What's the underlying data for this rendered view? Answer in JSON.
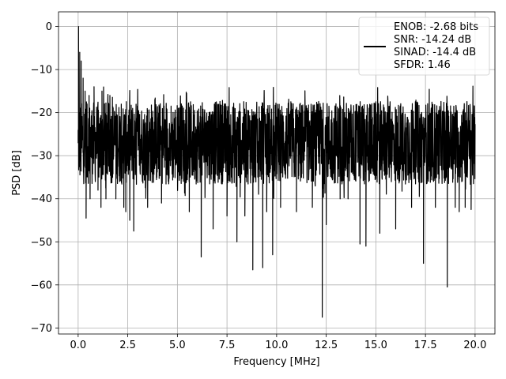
{
  "chart_data": {
    "type": "line",
    "title": "",
    "xlabel": "Frequency [MHz]",
    "ylabel": "PSD [dB]",
    "xlim": [
      -0.99,
      21.0
    ],
    "ylim": [
      -71.4,
      3.4
    ],
    "grid": true,
    "legend_position": "top-right",
    "line_color": "#000000",
    "x_ticks": [
      0.0,
      2.5,
      5.0,
      7.5,
      10.0,
      12.5,
      15.0,
      17.5,
      20.0
    ],
    "x_tick_labels": [
      "0.0",
      "2.5",
      "5.0",
      "7.5",
      "10.0",
      "12.5",
      "15.0",
      "17.5",
      "20.0"
    ],
    "y_ticks": [
      0,
      -10,
      -20,
      -30,
      -40,
      -50,
      -60,
      -70
    ],
    "y_tick_labels": [
      "0",
      "−10",
      "−20",
      "−30",
      "−40",
      "−50",
      "−60",
      "−70"
    ],
    "legend_entries": [
      "ENOB: -2.68 bits",
      "SNR: -14.24 dB",
      "SINAD: -14.4 dB",
      "SFDR: 1.46"
    ],
    "series": [
      {
        "name": "ENOB: -2.68 bits",
        "x_start": 0.0,
        "x_end": 20.0,
        "band_center": -27,
        "band_halfwidth": 6,
        "points": [
          [
            0.0,
            -27
          ],
          [
            0.02,
            0.0
          ],
          [
            0.05,
            -20
          ],
          [
            0.08,
            -6
          ],
          [
            0.12,
            -26
          ],
          [
            0.15,
            -8
          ],
          [
            0.2,
            -24
          ],
          [
            0.25,
            -12
          ],
          [
            0.3,
            -30
          ],
          [
            0.35,
            -15
          ],
          [
            0.4,
            -44.5
          ],
          [
            0.45,
            -18
          ],
          [
            0.5,
            -33
          ],
          [
            0.55,
            -16
          ],
          [
            0.6,
            -40
          ],
          [
            0.8,
            -14
          ],
          [
            1.0,
            -38
          ],
          [
            1.2,
            -15
          ],
          [
            1.15,
            -42
          ],
          [
            1.4,
            -40
          ],
          [
            1.6,
            -16
          ],
          [
            1.9,
            -40
          ],
          [
            2.3,
            -42
          ],
          [
            2.4,
            -43
          ],
          [
            2.8,
            -47.5
          ],
          [
            2.6,
            -45
          ],
          [
            3.5,
            -42
          ],
          [
            4.2,
            -41
          ],
          [
            5.6,
            -43
          ],
          [
            6.2,
            -53.5
          ],
          [
            6.8,
            -47
          ],
          [
            7.5,
            -44
          ],
          [
            8.0,
            -50
          ],
          [
            8.4,
            -44
          ],
          [
            8.8,
            -56.5
          ],
          [
            9.3,
            -56
          ],
          [
            9.5,
            -43
          ],
          [
            9.8,
            -53
          ],
          [
            10.2,
            -42
          ],
          [
            11.0,
            -43
          ],
          [
            11.8,
            -42
          ],
          [
            12.3,
            -67.5
          ],
          [
            12.5,
            -46
          ],
          [
            13.2,
            -40
          ],
          [
            13.6,
            -40
          ],
          [
            14.2,
            -50.5
          ],
          [
            14.5,
            -51
          ],
          [
            15.2,
            -48
          ],
          [
            16.0,
            -47
          ],
          [
            16.8,
            -42
          ],
          [
            17.4,
            -55
          ],
          [
            18.0,
            -42
          ],
          [
            18.6,
            -60.5
          ],
          [
            19.0,
            -42
          ],
          [
            19.2,
            -43
          ],
          [
            19.5,
            -42
          ],
          [
            19.8,
            -42.5
          ],
          [
            20.0,
            -24
          ]
        ]
      }
    ]
  }
}
